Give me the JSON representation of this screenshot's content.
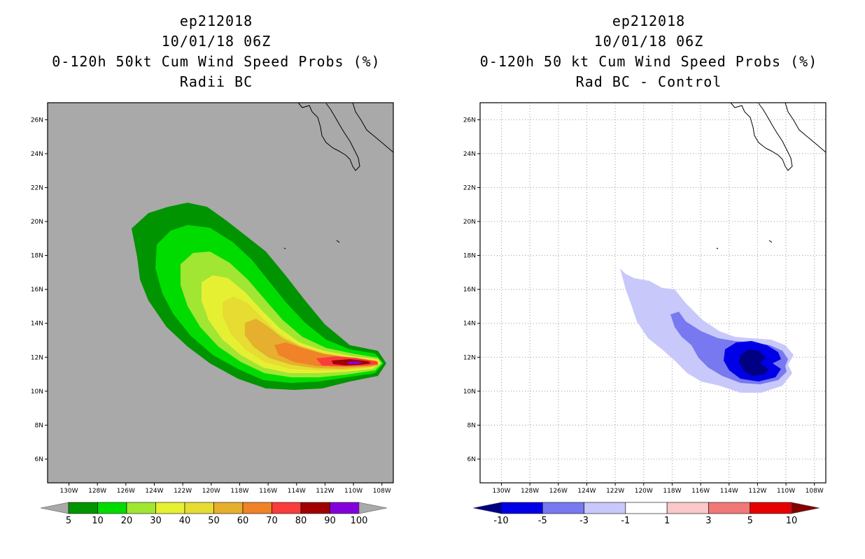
{
  "panels": [
    {
      "id": "left",
      "title_lines": [
        "ep212018",
        "10/01/18 06Z",
        "0-120h 50kt Cum Wind Speed Probs (%)",
        "Radii BC"
      ],
      "background_color": "#a9a9a9",
      "show_grid": false,
      "colorbar": {
        "labels": [
          "5",
          "10",
          "20",
          "30",
          "40",
          "50",
          "60",
          "70",
          "80",
          "90",
          "100"
        ],
        "colors": [
          "#009400",
          "#00dc00",
          "#a0e632",
          "#e6f032",
          "#e6dc32",
          "#e6af2d",
          "#f08228",
          "#fa3c3c",
          "#a00000",
          "#8200dc"
        ],
        "end_low": "#a9a9a9",
        "end_high": "#a9a9a9"
      }
    },
    {
      "id": "right",
      "title_lines": [
        "ep212018",
        "10/01/18 06Z",
        "0-120h 50 kt Cum Wind Speed Probs (%)",
        "Rad BC - Control"
      ],
      "background_color": "#ffffff",
      "show_grid": true,
      "colorbar": {
        "labels": [
          "-10",
          "-5",
          "-3",
          "-1",
          "1",
          "3",
          "5",
          "10"
        ],
        "colors": [
          "#0000e6",
          "#7878f0",
          "#c8c8fa",
          "#ffffff",
          "#fac8c8",
          "#f07878",
          "#e60000"
        ],
        "end_low": "#000082",
        "end_high": "#820000"
      }
    }
  ],
  "chart_data": [
    {
      "type": "contour_map",
      "title": "0-120h 50kt Cum Wind Speed Probs (%)",
      "subtitle": "Radii BC",
      "storm": "ep212018",
      "valid_time": "10/01/18 06Z",
      "x_range_lon_w": [
        131.5,
        107.2
      ],
      "y_range_lat_n": [
        4.6,
        27.0
      ],
      "x_ticks": [
        "130W",
        "128W",
        "126W",
        "124W",
        "122W",
        "120W",
        "118W",
        "116W",
        "114W",
        "112W",
        "110W",
        "108W"
      ],
      "y_ticks": [
        "6N",
        "8N",
        "10N",
        "12N",
        "14N",
        "16N",
        "18N",
        "20N",
        "22N",
        "24N",
        "26N"
      ],
      "contour_levels": [
        5,
        10,
        20,
        30,
        40,
        50,
        60,
        70,
        80,
        90,
        100
      ],
      "probability_peak_percent": 90,
      "peak_location": "approx. 11.5N 110W"
    },
    {
      "type": "contour_map",
      "title": "0-120h 50 kt Cum Wind Speed Probs (%)",
      "subtitle": "Rad BC - Control",
      "storm": "ep212018",
      "valid_time": "10/01/18 06Z",
      "x_range_lon_w": [
        131.5,
        107.2
      ],
      "y_range_lat_n": [
        4.6,
        27.0
      ],
      "x_ticks": [
        "130W",
        "128W",
        "126W",
        "124W",
        "122W",
        "120W",
        "118W",
        "116W",
        "114W",
        "112W",
        "110W",
        "108W"
      ],
      "y_ticks": [
        "6N",
        "8N",
        "10N",
        "12N",
        "14N",
        "16N",
        "18N",
        "20N",
        "22N",
        "24N",
        "26N"
      ],
      "contour_levels": [
        -10,
        -5,
        -3,
        -1,
        1,
        3,
        5,
        10
      ],
      "difference_min_percent": -10,
      "peak_location": "approx. 11.8N 112W"
    }
  ]
}
